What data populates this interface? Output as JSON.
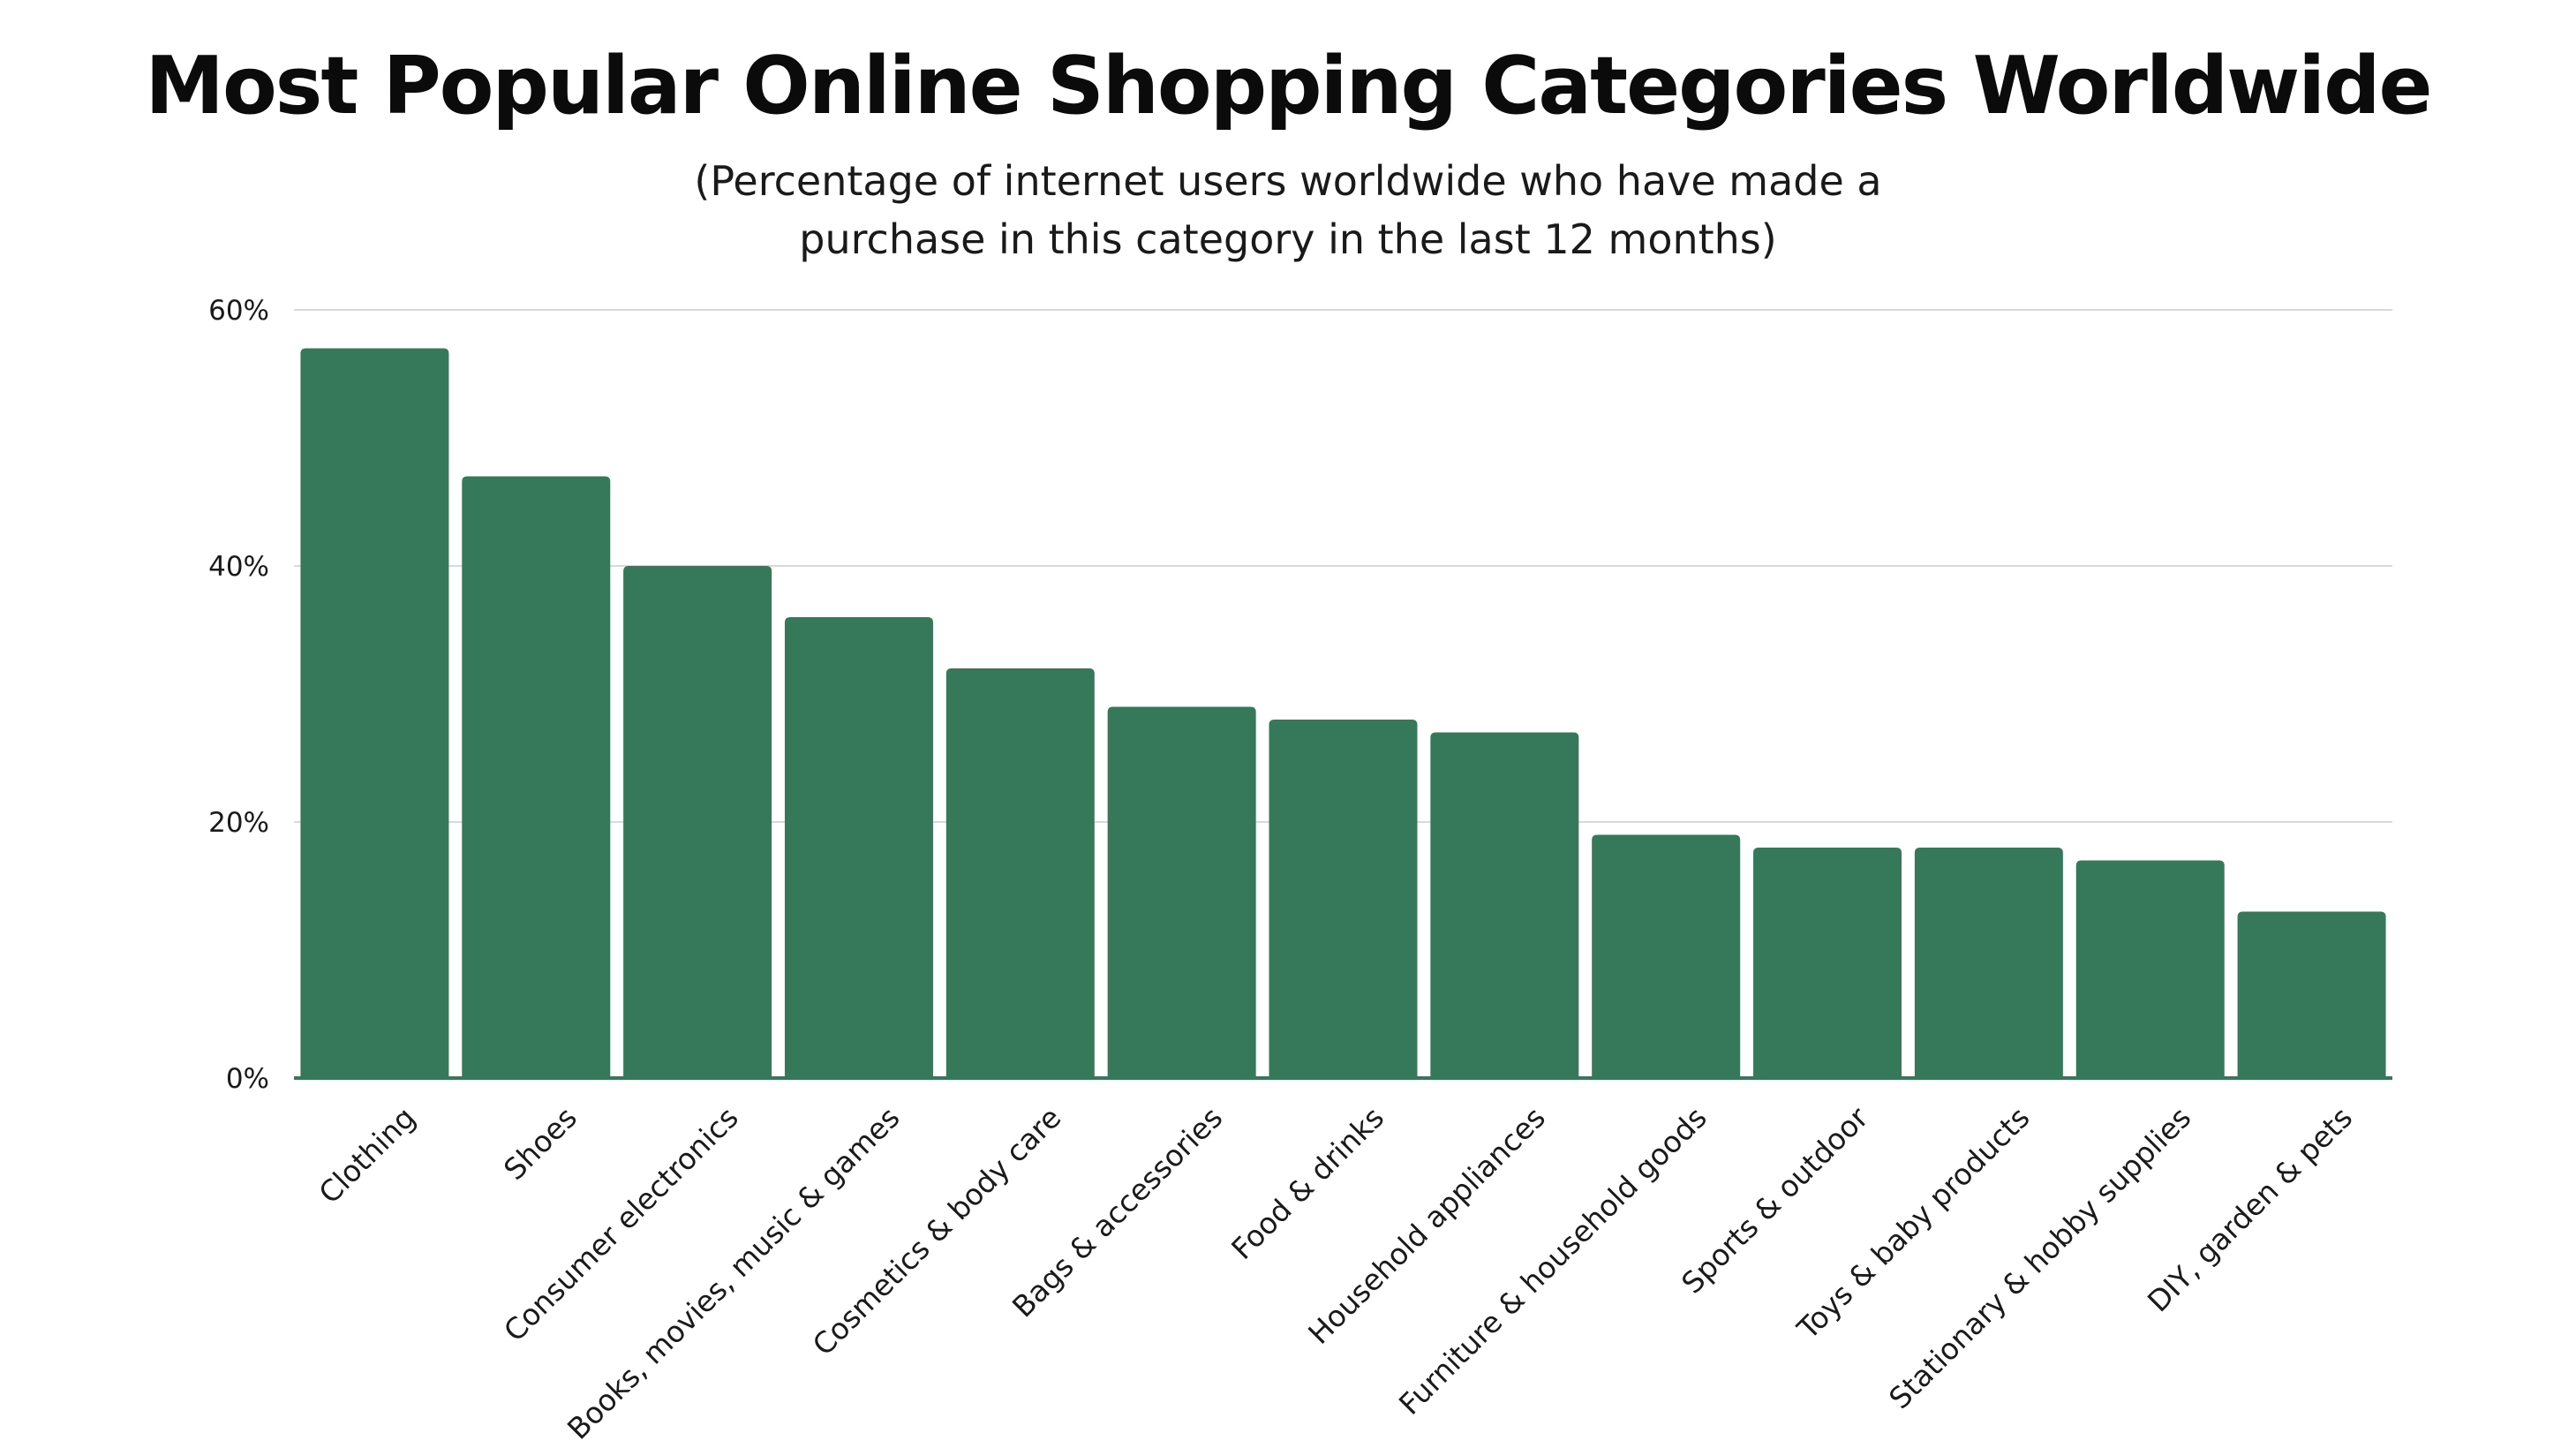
{
  "title": "Most Popular Online Shopping Categories Worldwide",
  "subtitle_lines": [
    "(Percentage of internet users worldwide who have made a",
    "purchase in this category in the last 12 months)"
  ],
  "colors": {
    "bar": "#36785a",
    "grid": "#d9d9d9",
    "baseline": "#36785a"
  },
  "chart_data": {
    "type": "bar",
    "title": "Most Popular Online Shopping Categories Worldwide",
    "subtitle": "(Percentage of internet users worldwide who have made a purchase in this category in the last 12 months)",
    "xlabel": "",
    "ylabel": "",
    "categories": [
      "Clothing",
      "Shoes",
      "Consumer electronics",
      "Books, movies, music & games",
      "Cosmetics & body care",
      "Bags & accessories",
      "Food & drinks",
      "Household appliances",
      "Furniture & household goods",
      "Sports & outdoor",
      "Toys & baby products",
      "Stationary & hobby supplies",
      "DIY, garden & pets"
    ],
    "values": [
      57,
      47,
      40,
      36,
      32,
      29,
      28,
      27,
      19,
      18,
      18,
      17,
      13
    ],
    "unit": "%",
    "ylim": [
      0,
      60
    ],
    "yticks": [
      0,
      20,
      40,
      60
    ],
    "ytick_labels": [
      "0%",
      "20%",
      "40%",
      "60%"
    ],
    "grid": true,
    "legend": "none"
  }
}
